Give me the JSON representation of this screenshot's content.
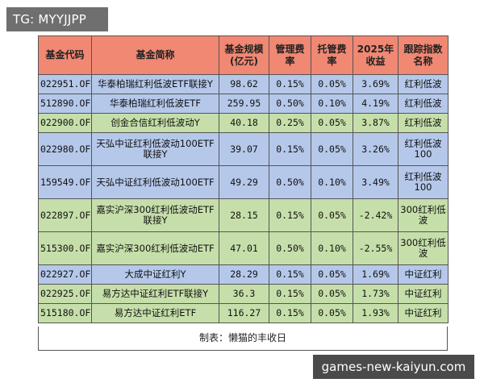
{
  "tags": {
    "top": "TG: MYYJJPP",
    "bottom": "games-new-kaiyun.com"
  },
  "table": {
    "headers": [
      "基金代码",
      "基金简称",
      "基金规模(亿元)",
      "管理费率",
      "托管费率",
      "2025年收益",
      "跟踪指数名称"
    ],
    "rows": [
      {
        "code": "022951.OF",
        "name": "华泰柏瑞红利低波ETF联接Y",
        "scale": "98.62",
        "mgmt": "0.15%",
        "cust": "0.05%",
        "ret": "3.69%",
        "index": "红利低波"
      },
      {
        "code": "512890.OF",
        "name": "华泰柏瑞红利低波ETF",
        "scale": "259.95",
        "mgmt": "0.50%",
        "cust": "0.10%",
        "ret": "4.19%",
        "index": "红利低波"
      },
      {
        "code": "022900.OF",
        "name": "创金合信红利低波动Y",
        "scale": "40.18",
        "mgmt": "0.25%",
        "cust": "0.05%",
        "ret": "3.87%",
        "index": "红利低波"
      },
      {
        "code": "022980.OF",
        "name": "天弘中证红利低波动100ETF联接Y",
        "scale": "39.07",
        "mgmt": "0.15%",
        "cust": "0.05%",
        "ret": "3.26%",
        "index": "红利低波100"
      },
      {
        "code": "159549.OF",
        "name": "天弘中证红利低波动100ETF",
        "scale": "49.29",
        "mgmt": "0.50%",
        "cust": "0.10%",
        "ret": "3.49%",
        "index": "红利低波100"
      },
      {
        "code": "022897.OF",
        "name": "嘉实沪深300红利低波动ETF联接Y",
        "scale": "28.15",
        "mgmt": "0.15%",
        "cust": "0.05%",
        "ret": "-2.42%",
        "index": "300红利低波"
      },
      {
        "code": "515300.OF",
        "name": "嘉实沪深300红利低波动ETF",
        "scale": "47.01",
        "mgmt": "0.50%",
        "cust": "0.10%",
        "ret": "-2.55%",
        "index": "300红利低波"
      },
      {
        "code": "022927.OF",
        "name": "大成中证红利Y",
        "scale": "28.29",
        "mgmt": "0.15%",
        "cust": "0.05%",
        "ret": "1.69%",
        "index": "中证红利"
      },
      {
        "code": "022925.OF",
        "name": "易方达中证红利ETF联接Y",
        "scale": "36.3",
        "mgmt": "0.15%",
        "cust": "0.05%",
        "ret": "1.73%",
        "index": "中证红利"
      },
      {
        "code": "515180.OF",
        "name": "易方达中证红利ETF",
        "scale": "116.27",
        "mgmt": "0.15%",
        "cust": "0.05%",
        "ret": "1.93%",
        "index": "中证红利"
      }
    ],
    "footer": "制表：懒猫的丰收日"
  }
}
